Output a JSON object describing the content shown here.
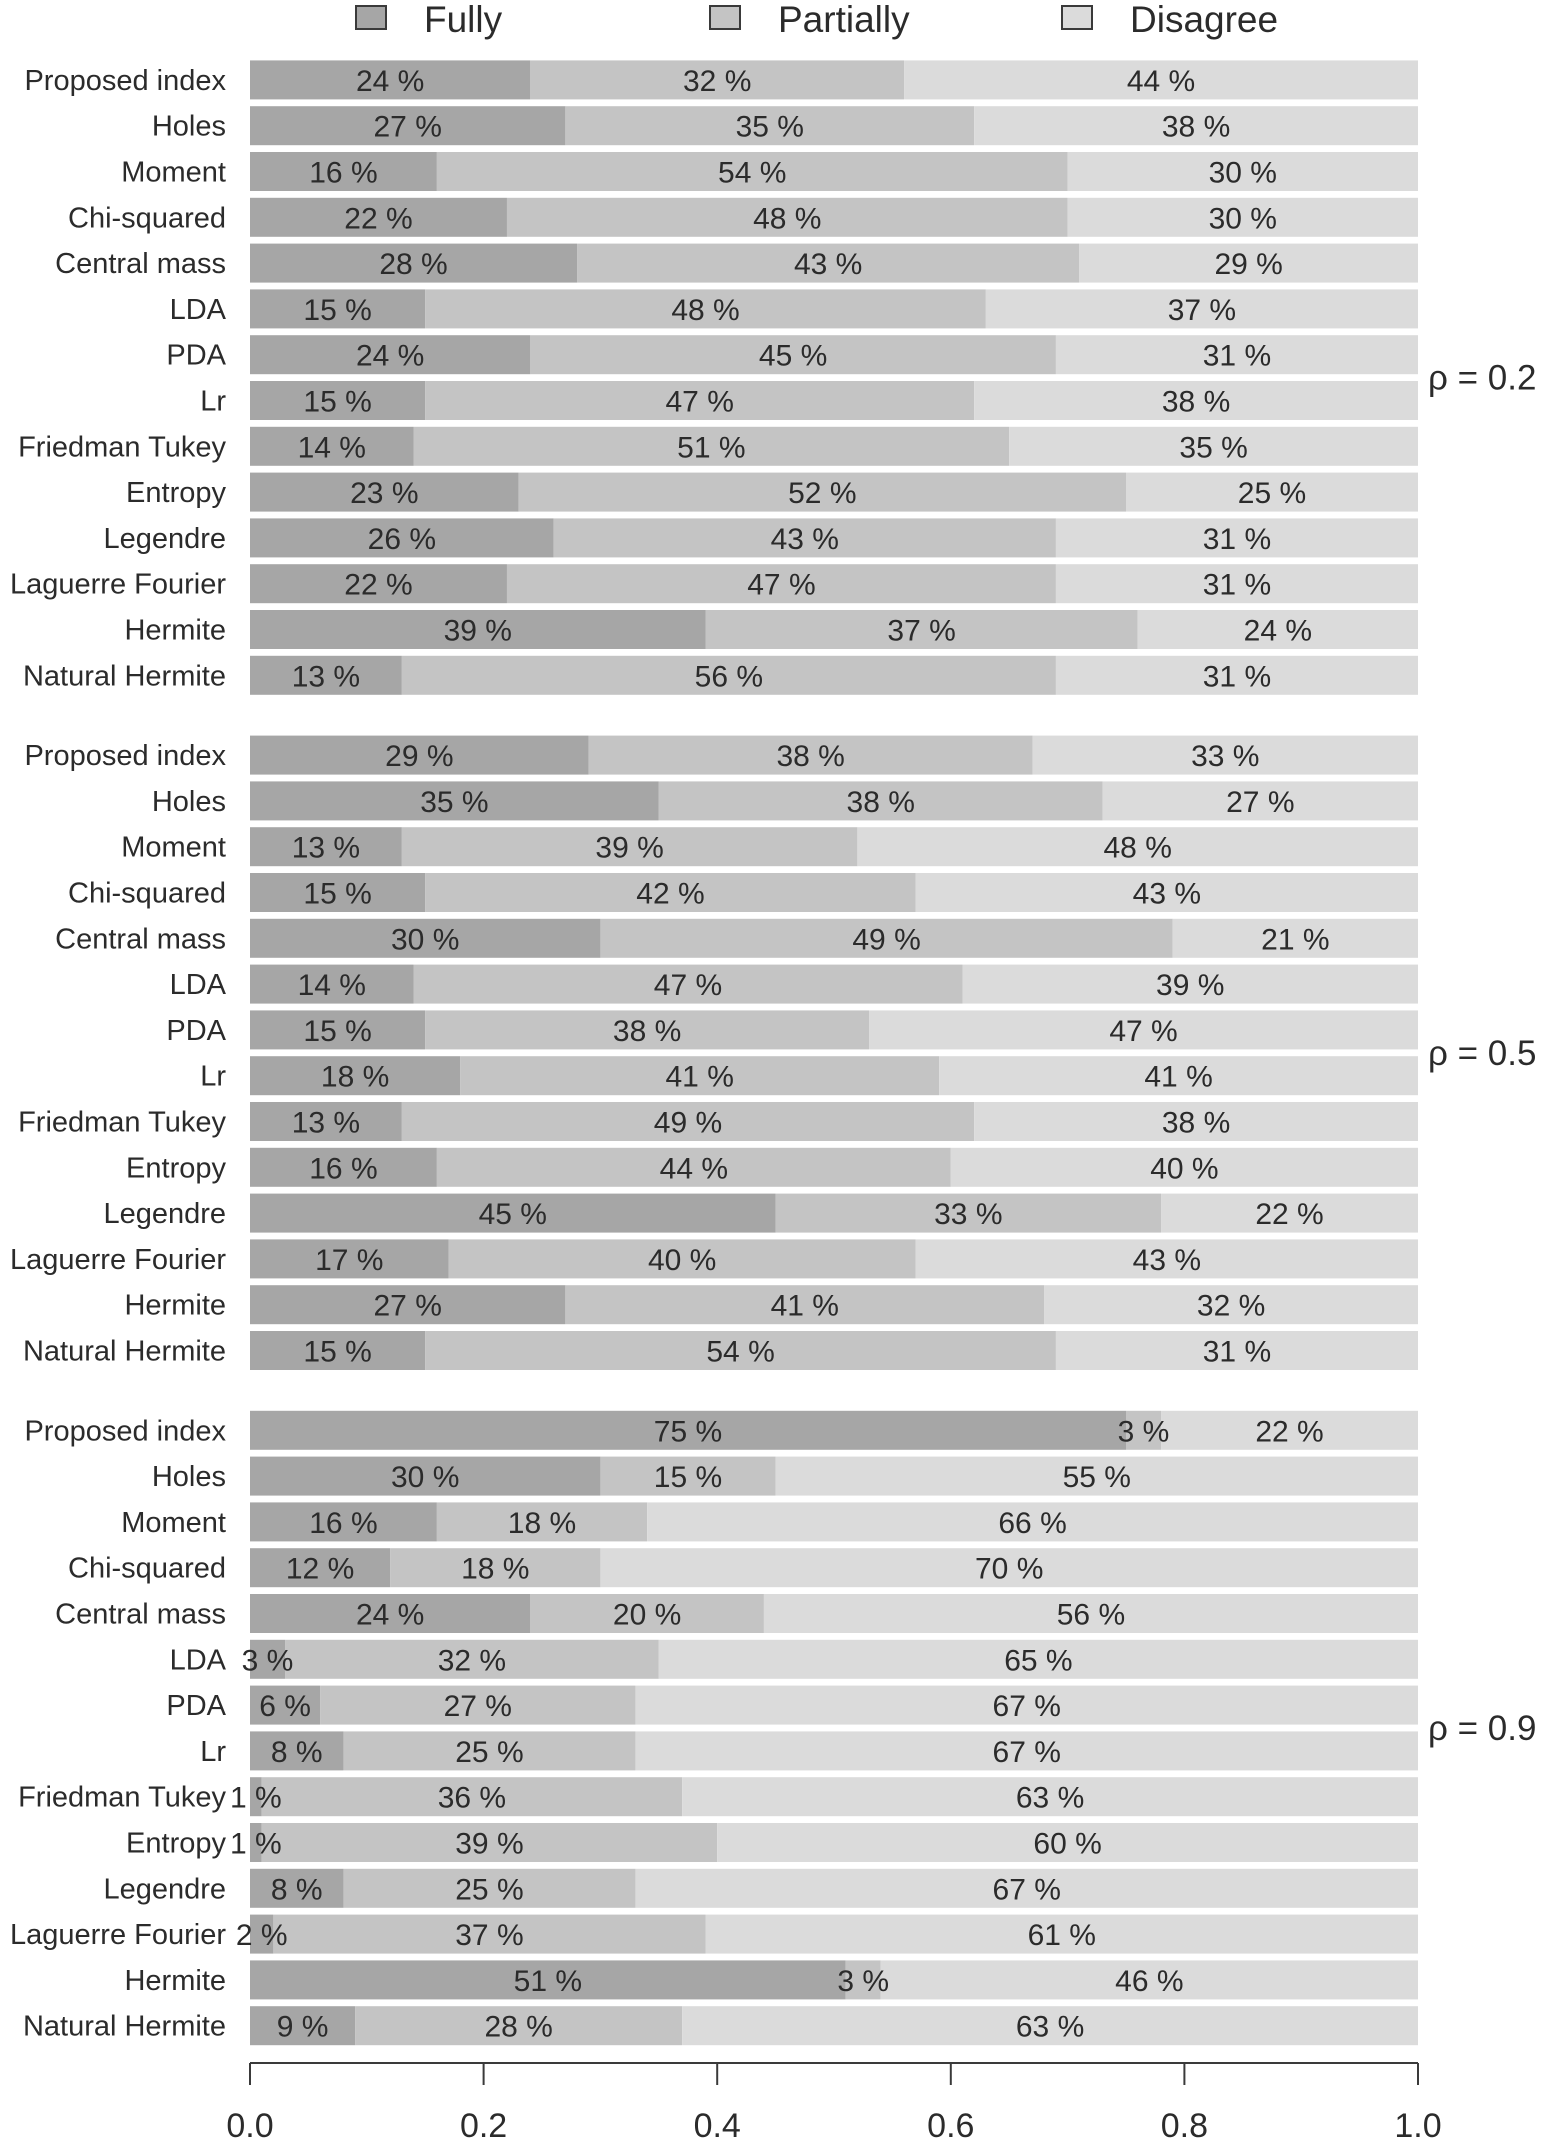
{
  "chart_data": {
    "type": "bar",
    "orientation": "horizontal",
    "stacked": true,
    "legend": {
      "placement": "top",
      "items": [
        {
          "name": "Fully",
          "color": "#a6a6a6"
        },
        {
          "name": "Partially",
          "color": "#c4c4c4"
        },
        {
          "name": "Disagree",
          "color": "#dbdbdb"
        }
      ]
    },
    "xlim": [
      0,
      1
    ],
    "x_ticks": [
      0.0,
      0.2,
      0.4,
      0.6,
      0.8,
      1.0
    ],
    "x_tick_labels": [
      "0.0",
      "0.2",
      "0.4",
      "0.6",
      "0.8",
      "1.0"
    ],
    "categories": [
      "Proposed index",
      "Holes",
      "Moment",
      "Chi-squared",
      "Central mass",
      "LDA",
      "PDA",
      "Lr",
      "Friedman Tukey",
      "Entropy",
      "Legendre",
      "Laguerre Fourier",
      "Hermite",
      "Natural Hermite"
    ],
    "groups": [
      {
        "label": "ρ = 0.2",
        "rows": [
          {
            "values": [
              0.24,
              0.32,
              0.44
            ],
            "labels": [
              "24 %",
              "32 %",
              "44 %"
            ]
          },
          {
            "values": [
              0.27,
              0.35,
              0.38
            ],
            "labels": [
              "27 %",
              "35 %",
              "38 %"
            ]
          },
          {
            "values": [
              0.16,
              0.54,
              0.3
            ],
            "labels": [
              "16 %",
              "54 %",
              "30 %"
            ]
          },
          {
            "values": [
              0.22,
              0.48,
              0.3
            ],
            "labels": [
              "22 %",
              "48 %",
              "30 %"
            ]
          },
          {
            "values": [
              0.28,
              0.43,
              0.29
            ],
            "labels": [
              "28 %",
              "43 %",
              "29 %"
            ]
          },
          {
            "values": [
              0.15,
              0.48,
              0.37
            ],
            "labels": [
              "15 %",
              "48 %",
              "37 %"
            ]
          },
          {
            "values": [
              0.24,
              0.45,
              0.31
            ],
            "labels": [
              "24 %",
              "45 %",
              "31 %"
            ]
          },
          {
            "values": [
              0.15,
              0.47,
              0.38
            ],
            "labels": [
              "15 %",
              "47 %",
              "38 %"
            ]
          },
          {
            "values": [
              0.14,
              0.51,
              0.35
            ],
            "labels": [
              "14 %",
              "51 %",
              "35 %"
            ]
          },
          {
            "values": [
              0.23,
              0.52,
              0.25
            ],
            "labels": [
              "23 %",
              "52 %",
              "25 %"
            ]
          },
          {
            "values": [
              0.26,
              0.43,
              0.31
            ],
            "labels": [
              "26 %",
              "43 %",
              "31 %"
            ]
          },
          {
            "values": [
              0.22,
              0.47,
              0.31
            ],
            "labels": [
              "22 %",
              "47 %",
              "31 %"
            ]
          },
          {
            "values": [
              0.39,
              0.37,
              0.24
            ],
            "labels": [
              "39 %",
              "37 %",
              "24 %"
            ]
          },
          {
            "values": [
              0.13,
              0.56,
              0.31
            ],
            "labels": [
              "13 %",
              "56 %",
              "31 %"
            ]
          }
        ]
      },
      {
        "label": "ρ = 0.5",
        "rows": [
          {
            "values": [
              0.29,
              0.38,
              0.33
            ],
            "labels": [
              "29 %",
              "38 %",
              "33 %"
            ]
          },
          {
            "values": [
              0.35,
              0.38,
              0.27
            ],
            "labels": [
              "35 %",
              "38 %",
              "27 %"
            ]
          },
          {
            "values": [
              0.13,
              0.39,
              0.48
            ],
            "labels": [
              "13 %",
              "39 %",
              "48 %"
            ]
          },
          {
            "values": [
              0.15,
              0.42,
              0.43
            ],
            "labels": [
              "15 %",
              "42 %",
              "43 %"
            ]
          },
          {
            "values": [
              0.3,
              0.49,
              0.21
            ],
            "labels": [
              "30 %",
              "49 %",
              "21 %"
            ]
          },
          {
            "values": [
              0.14,
              0.47,
              0.39
            ],
            "labels": [
              "14 %",
              "47 %",
              "39 %"
            ]
          },
          {
            "values": [
              0.15,
              0.38,
              0.47
            ],
            "labels": [
              "15 %",
              "38 %",
              "47 %"
            ]
          },
          {
            "values": [
              0.18,
              0.41,
              0.41
            ],
            "labels": [
              "18 %",
              "41 %",
              "41 %"
            ]
          },
          {
            "values": [
              0.13,
              0.49,
              0.38
            ],
            "labels": [
              "13 %",
              "49 %",
              "38 %"
            ]
          },
          {
            "values": [
              0.16,
              0.44,
              0.4
            ],
            "labels": [
              "16 %",
              "44 %",
              "40 %"
            ]
          },
          {
            "values": [
              0.45,
              0.33,
              0.22
            ],
            "labels": [
              "45 %",
              "33 %",
              "22 %"
            ]
          },
          {
            "values": [
              0.17,
              0.4,
              0.43
            ],
            "labels": [
              "17 %",
              "40 %",
              "43 %"
            ]
          },
          {
            "values": [
              0.27,
              0.41,
              0.32
            ],
            "labels": [
              "27 %",
              "41 %",
              "32 %"
            ]
          },
          {
            "values": [
              0.15,
              0.54,
              0.31
            ],
            "labels": [
              "15 %",
              "54 %",
              "31 %"
            ]
          }
        ]
      },
      {
        "label": "ρ = 0.9",
        "rows": [
          {
            "values": [
              0.75,
              0.03,
              0.22
            ],
            "labels": [
              "75 %",
              "3 %",
              "22 %"
            ]
          },
          {
            "values": [
              0.3,
              0.15,
              0.55
            ],
            "labels": [
              "30 %",
              "15 %",
              "55 %"
            ]
          },
          {
            "values": [
              0.16,
              0.18,
              0.66
            ],
            "labels": [
              "16 %",
              "18 %",
              "66 %"
            ]
          },
          {
            "values": [
              0.12,
              0.18,
              0.7
            ],
            "labels": [
              "12 %",
              "18 %",
              "70 %"
            ]
          },
          {
            "values": [
              0.24,
              0.2,
              0.56
            ],
            "labels": [
              "24 %",
              "20 %",
              "56 %"
            ]
          },
          {
            "values": [
              0.03,
              0.32,
              0.65
            ],
            "labels": [
              "3 %",
              "32 %",
              "65 %"
            ]
          },
          {
            "values": [
              0.06,
              0.27,
              0.67
            ],
            "labels": [
              "6 %",
              "27 %",
              "67 %"
            ]
          },
          {
            "values": [
              0.08,
              0.25,
              0.67
            ],
            "labels": [
              "8 %",
              "25 %",
              "67 %"
            ]
          },
          {
            "values": [
              0.01,
              0.36,
              0.63
            ],
            "labels": [
              "1 %",
              "36 %",
              "63 %"
            ]
          },
          {
            "values": [
              0.01,
              0.39,
              0.6
            ],
            "labels": [
              "1 %",
              "39 %",
              "60 %"
            ]
          },
          {
            "values": [
              0.08,
              0.25,
              0.67
            ],
            "labels": [
              "8 %",
              "25 %",
              "67 %"
            ]
          },
          {
            "values": [
              0.02,
              0.37,
              0.61
            ],
            "labels": [
              "2 %",
              "37 %",
              "61 %"
            ]
          },
          {
            "values": [
              0.51,
              0.03,
              0.46
            ],
            "labels": [
              "51 %",
              "3 %",
              "46 %"
            ]
          },
          {
            "values": [
              0.09,
              0.28,
              0.63
            ],
            "labels": [
              "9 %",
              "28 %",
              "63 %"
            ]
          }
        ]
      }
    ]
  }
}
